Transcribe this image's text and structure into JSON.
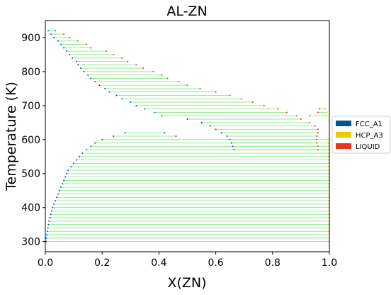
{
  "chart_data": {
    "type": "scatter",
    "title": "AL-ZN",
    "xlabel": "X(ZN)",
    "ylabel": "Temperature (K)",
    "xlim": [
      0.0,
      1.0
    ],
    "ylim": [
      270,
      950
    ],
    "xticks": [
      "0.0",
      "0.2",
      "0.4",
      "0.6",
      "0.8",
      "1.0"
    ],
    "yticks": [
      "300",
      "400",
      "500",
      "600",
      "700",
      "800",
      "900"
    ],
    "legend_position": "right",
    "legend": [
      {
        "name": "FCC_A1",
        "color": "#00558c"
      },
      {
        "name": "HCP_A3",
        "color": "#f0c800"
      },
      {
        "name": "LIQUID",
        "color": "#e8381a"
      }
    ],
    "tieline_color": "#90ee90",
    "tielines_liquidus": [
      {
        "T": 920,
        "x1": 0.01,
        "x2": 0.035
      },
      {
        "T": 910,
        "x1": 0.02,
        "x2": 0.065
      },
      {
        "T": 900,
        "x1": 0.03,
        "x2": 0.085
      },
      {
        "T": 890,
        "x1": 0.045,
        "x2": 0.115
      },
      {
        "T": 880,
        "x1": 0.055,
        "x2": 0.145
      },
      {
        "T": 870,
        "x1": 0.065,
        "x2": 0.16
      },
      {
        "T": 860,
        "x1": 0.075,
        "x2": 0.215
      },
      {
        "T": 850,
        "x1": 0.085,
        "x2": 0.24
      },
      {
        "T": 840,
        "x1": 0.095,
        "x2": 0.27
      },
      {
        "T": 830,
        "x1": 0.11,
        "x2": 0.29
      },
      {
        "T": 820,
        "x1": 0.115,
        "x2": 0.32
      },
      {
        "T": 810,
        "x1": 0.125,
        "x2": 0.345
      },
      {
        "T": 800,
        "x1": 0.135,
        "x2": 0.38
      },
      {
        "T": 790,
        "x1": 0.15,
        "x2": 0.41
      },
      {
        "T": 780,
        "x1": 0.16,
        "x2": 0.43
      },
      {
        "T": 770,
        "x1": 0.175,
        "x2": 0.47
      },
      {
        "T": 760,
        "x1": 0.19,
        "x2": 0.5
      },
      {
        "T": 750,
        "x1": 0.21,
        "x2": 0.545
      },
      {
        "T": 740,
        "x1": 0.225,
        "x2": 0.6
      },
      {
        "T": 730,
        "x1": 0.25,
        "x2": 0.65
      },
      {
        "T": 720,
        "x1": 0.27,
        "x2": 0.69
      },
      {
        "T": 710,
        "x1": 0.3,
        "x2": 0.73
      },
      {
        "T": 700,
        "x1": 0.32,
        "x2": 0.77
      },
      {
        "T": 690,
        "x1": 0.35,
        "x2": 0.82
      },
      {
        "T": 680,
        "x1": 0.385,
        "x2": 0.85
      },
      {
        "T": 670,
        "x1": 0.41,
        "x2": 0.885
      },
      {
        "T": 660,
        "x1": 0.5,
        "x2": 0.9
      },
      {
        "T": 650,
        "x1": 0.55,
        "x2": 0.93
      },
      {
        "T": 640,
        "x1": 0.58,
        "x2": 0.95
      },
      {
        "T": 630,
        "x1": 0.6,
        "x2": 0.96
      },
      {
        "T": 620,
        "x1": 0.62,
        "x2": 0.96
      },
      {
        "T": 610,
        "x1": 0.64,
        "x2": 0.955
      },
      {
        "T": 600,
        "x1": 0.65,
        "x2": 0.955
      },
      {
        "T": 590,
        "x1": 0.655,
        "x2": 0.955
      },
      {
        "T": 580,
        "x1": 0.66,
        "x2": 0.96
      },
      {
        "T": 570,
        "x1": 0.665,
        "x2": 0.96
      }
    ],
    "tielines_miscibility": [
      {
        "T": 620,
        "x1": 0.28,
        "x2": 0.42
      },
      {
        "T": 610,
        "x1": 0.24,
        "x2": 0.46
      }
    ],
    "tielines_solid": [
      {
        "T": 600,
        "x1": 0.2,
        "x2": 0.995
      },
      {
        "T": 590,
        "x1": 0.175,
        "x2": 0.996
      },
      {
        "T": 580,
        "x1": 0.16,
        "x2": 0.996
      },
      {
        "T": 570,
        "x1": 0.145,
        "x2": 0.997
      },
      {
        "T": 560,
        "x1": 0.13,
        "x2": 0.997
      },
      {
        "T": 550,
        "x1": 0.12,
        "x2": 0.997
      },
      {
        "T": 540,
        "x1": 0.11,
        "x2": 0.998
      },
      {
        "T": 530,
        "x1": 0.1,
        "x2": 0.998
      },
      {
        "T": 520,
        "x1": 0.09,
        "x2": 0.998
      },
      {
        "T": 510,
        "x1": 0.08,
        "x2": 0.998
      },
      {
        "T": 500,
        "x1": 0.075,
        "x2": 0.998
      },
      {
        "T": 490,
        "x1": 0.07,
        "x2": 0.999
      },
      {
        "T": 480,
        "x1": 0.065,
        "x2": 0.999
      },
      {
        "T": 470,
        "x1": 0.06,
        "x2": 0.999
      },
      {
        "T": 460,
        "x1": 0.055,
        "x2": 0.999
      },
      {
        "T": 450,
        "x1": 0.05,
        "x2": 0.999
      },
      {
        "T": 440,
        "x1": 0.045,
        "x2": 0.999
      },
      {
        "T": 430,
        "x1": 0.04,
        "x2": 0.999
      },
      {
        "T": 420,
        "x1": 0.035,
        "x2": 0.999
      },
      {
        "T": 410,
        "x1": 0.03,
        "x2": 0.999
      },
      {
        "T": 400,
        "x1": 0.025,
        "x2": 0.999
      },
      {
        "T": 390,
        "x1": 0.022,
        "x2": 0.999
      },
      {
        "T": 380,
        "x1": 0.019,
        "x2": 0.999
      },
      {
        "T": 370,
        "x1": 0.016,
        "x2": 0.999
      },
      {
        "T": 360,
        "x1": 0.013,
        "x2": 0.999
      },
      {
        "T": 350,
        "x1": 0.011,
        "x2": 0.999
      },
      {
        "T": 340,
        "x1": 0.009,
        "x2": 0.999
      },
      {
        "T": 330,
        "x1": 0.007,
        "x2": 0.999
      },
      {
        "T": 320,
        "x1": 0.005,
        "x2": 0.999
      },
      {
        "T": 310,
        "x1": 0.004,
        "x2": 0.999
      },
      {
        "T": 300,
        "x1": 0.003,
        "x2": 0.999
      }
    ],
    "tielines_hcp_liquid": [
      {
        "T": 690,
        "x1": 0.965,
        "x2": 0.985
      },
      {
        "T": 680,
        "x1": 0.96,
        "x2": 0.99
      },
      {
        "T": 670,
        "x1": 0.93,
        "x2": 0.99
      }
    ]
  }
}
